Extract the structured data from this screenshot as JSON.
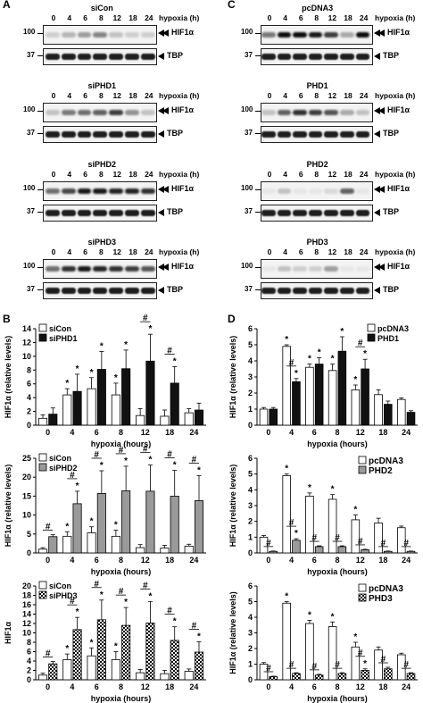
{
  "panel_letters": {
    "A": "A",
    "B": "B",
    "C": "C",
    "D": "D"
  },
  "blot_common": {
    "hypoxia_label": "hypoxia (h)",
    "lanes": [
      "0",
      "4",
      "6",
      "8",
      "12",
      "18",
      "24"
    ],
    "mw_upper": "100",
    "mw_lower": "37",
    "hif_label": "HIF1α",
    "tbp_label": "TBP"
  },
  "blots_A": [
    {
      "title": "siCon"
    },
    {
      "title": "siPHD1"
    },
    {
      "title": "siPHD2"
    },
    {
      "title": "siPHD3"
    }
  ],
  "blots_C": [
    {
      "title": "pcDNA3"
    },
    {
      "title": "PHD1"
    },
    {
      "title": "PHD2"
    },
    {
      "title": "PHD3"
    }
  ],
  "chart_data": [
    {
      "id": "B1",
      "type": "bar",
      "ylabel": "HIF1α (relative levels)",
      "xlabel": "hypoxia (hours)",
      "ylim": [
        0,
        14
      ],
      "yticks": [
        0,
        2,
        4,
        6,
        8,
        10,
        12,
        14
      ],
      "categories": [
        "0",
        "4",
        "6",
        "8",
        "12",
        "18",
        "24"
      ],
      "legend_position": "top-left",
      "series": [
        {
          "name": "siCon",
          "pattern": "white",
          "values": [
            1,
            4.4,
            5.3,
            4.4,
            1.4,
            1.3,
            1.8
          ],
          "errors": [
            0.5,
            0.9,
            1.6,
            1.7,
            1.0,
            0.9,
            0.6
          ]
        },
        {
          "name": "siPHD1",
          "pattern": "black",
          "values": [
            1.6,
            4.9,
            8.1,
            8.2,
            9.3,
            6.1,
            2.2
          ],
          "errors": [
            0.9,
            2.5,
            2.6,
            2.7,
            3.9,
            2.4,
            1.0
          ]
        }
      ],
      "annotations": [
        {
          "category": "4",
          "series": 0,
          "marks": "*"
        },
        {
          "category": "4",
          "series": 1,
          "marks": "*"
        },
        {
          "category": "6",
          "series": 0,
          "marks": "*"
        },
        {
          "category": "6",
          "series": 1,
          "marks": "*"
        },
        {
          "category": "8",
          "series": 0,
          "marks": "*"
        },
        {
          "category": "8",
          "series": 1,
          "marks": "*"
        },
        {
          "category": "12",
          "series": 1,
          "marks": "#"
        },
        {
          "category": "12",
          "series": 1,
          "marks": "*"
        },
        {
          "category": "18",
          "series": 1,
          "marks": "#"
        },
        {
          "category": "18",
          "series": 1,
          "marks": "*"
        }
      ]
    },
    {
      "id": "B2",
      "type": "bar",
      "ylabel": "HIF1α (relative levels)",
      "xlabel": "hypoxia (hours)",
      "ylim": [
        0,
        25
      ],
      "yticks": [
        0,
        5,
        10,
        15,
        20,
        25
      ],
      "categories": [
        "0",
        "4",
        "6",
        "8",
        "12",
        "18",
        "24"
      ],
      "legend_position": "top-left",
      "series": [
        {
          "name": "siCon",
          "pattern": "white",
          "values": [
            1,
            4.4,
            5.3,
            4.4,
            1.4,
            1.3,
            1.8
          ],
          "errors": [
            0.4,
            1.2,
            1.6,
            1.6,
            0.8,
            0.7,
            0.5
          ]
        },
        {
          "name": "siPHD2",
          "pattern": "gray",
          "values": [
            4.3,
            13.0,
            15.7,
            16.4,
            16.3,
            15.0,
            13.8
          ],
          "errors": [
            0.5,
            3.3,
            6.0,
            6.5,
            6.9,
            6.8,
            6.6
          ]
        }
      ],
      "annotations": [
        {
          "category": "0",
          "series": 1,
          "marks": "#"
        },
        {
          "category": "4",
          "series": 0,
          "marks": "*"
        },
        {
          "category": "4",
          "series": 1,
          "marks": "#"
        },
        {
          "category": "4",
          "series": 1,
          "marks": "*"
        },
        {
          "category": "6",
          "series": 0,
          "marks": "*"
        },
        {
          "category": "6",
          "series": 1,
          "marks": "#"
        },
        {
          "category": "6",
          "series": 1,
          "marks": "*"
        },
        {
          "category": "8",
          "series": 0,
          "marks": "*"
        },
        {
          "category": "8",
          "series": 1,
          "marks": "#"
        },
        {
          "category": "8",
          "series": 1,
          "marks": "*"
        },
        {
          "category": "12",
          "series": 1,
          "marks": "#"
        },
        {
          "category": "12",
          "series": 1,
          "marks": "*"
        },
        {
          "category": "18",
          "series": 1,
          "marks": "#"
        },
        {
          "category": "18",
          "series": 1,
          "marks": "*"
        },
        {
          "category": "24",
          "series": 1,
          "marks": "#"
        },
        {
          "category": "24",
          "series": 1,
          "marks": "*"
        }
      ]
    },
    {
      "id": "B3",
      "type": "bar",
      "ylabel": "HIF1α",
      "xlabel": "hypoxia (hours)",
      "ylim": [
        0,
        20
      ],
      "yticks": [
        0,
        2,
        4,
        6,
        8,
        10,
        12,
        14,
        16,
        18,
        20
      ],
      "categories": [
        "0",
        "4",
        "6",
        "8",
        "12",
        "18",
        "24"
      ],
      "legend_position": "top-left",
      "series": [
        {
          "name": "siCon",
          "pattern": "white",
          "values": [
            1,
            4.3,
            5.1,
            4.3,
            1.5,
            1.3,
            1.8
          ],
          "errors": [
            0.4,
            1.2,
            1.7,
            1.7,
            0.7,
            0.7,
            0.5
          ]
        },
        {
          "name": "siPHD3",
          "pattern": "check",
          "values": [
            3.4,
            10.7,
            12.8,
            11.6,
            12.1,
            8.4,
            5.9
          ],
          "errors": [
            0.5,
            2.6,
            4.2,
            3.8,
            4.6,
            2.9,
            2.2
          ]
        }
      ],
      "annotations": [
        {
          "category": "0",
          "series": 1,
          "marks": "#"
        },
        {
          "category": "4",
          "series": 0,
          "marks": "*"
        },
        {
          "category": "4",
          "series": 1,
          "marks": "#"
        },
        {
          "category": "4",
          "series": 1,
          "marks": "*"
        },
        {
          "category": "6",
          "series": 0,
          "marks": "*"
        },
        {
          "category": "6",
          "series": 1,
          "marks": "#"
        },
        {
          "category": "6",
          "series": 1,
          "marks": "*"
        },
        {
          "category": "8",
          "series": 0,
          "marks": "*"
        },
        {
          "category": "8",
          "series": 1,
          "marks": "#"
        },
        {
          "category": "8",
          "series": 1,
          "marks": "*"
        },
        {
          "category": "12",
          "series": 1,
          "marks": "#"
        },
        {
          "category": "12",
          "series": 1,
          "marks": "*"
        },
        {
          "category": "18",
          "series": 1,
          "marks": "#"
        },
        {
          "category": "18",
          "series": 1,
          "marks": "*"
        },
        {
          "category": "24",
          "series": 1,
          "marks": "#"
        },
        {
          "category": "24",
          "series": 1,
          "marks": "*"
        }
      ]
    },
    {
      "id": "D1",
      "type": "bar",
      "ylabel": "HIF1α (relative levels)",
      "xlabel": "hypoxia (hours)",
      "ylim": [
        0,
        6
      ],
      "yticks": [
        0,
        1,
        2,
        3,
        4,
        5,
        6
      ],
      "categories": [
        "0",
        "4",
        "6",
        "8",
        "12",
        "18",
        "24"
      ],
      "legend_position": "top-right",
      "series": [
        {
          "name": "pcDNA3",
          "pattern": "white",
          "values": [
            1,
            4.9,
            3.6,
            3.4,
            2.2,
            1.9,
            1.6
          ],
          "errors": [
            0.1,
            0.1,
            0.2,
            0.4,
            0.3,
            0.3,
            0.1
          ]
        },
        {
          "name": "PHD1",
          "pattern": "black",
          "values": [
            1,
            2.7,
            3.8,
            4.6,
            3.5,
            1.3,
            0.8
          ],
          "errors": [
            0.1,
            0.2,
            0.4,
            0.9,
            0.6,
            0.2,
            0.1
          ]
        }
      ],
      "annotations": [
        {
          "category": "4",
          "series": 0,
          "marks": "*"
        },
        {
          "category": "4",
          "series": 1,
          "marks": "#"
        },
        {
          "category": "4",
          "series": 1,
          "marks": "*"
        },
        {
          "category": "6",
          "series": 0,
          "marks": "*"
        },
        {
          "category": "6",
          "series": 1,
          "marks": "*"
        },
        {
          "category": "8",
          "series": 0,
          "marks": "*"
        },
        {
          "category": "8",
          "series": 1,
          "marks": "*"
        },
        {
          "category": "12",
          "series": 0,
          "marks": "*"
        },
        {
          "category": "12",
          "series": 1,
          "marks": "#"
        },
        {
          "category": "12",
          "series": 1,
          "marks": "*"
        }
      ]
    },
    {
      "id": "D2",
      "type": "bar",
      "ylabel": "HIF1α (relative levels)",
      "xlabel": "hypoxia (hours)",
      "ylim": [
        0,
        6
      ],
      "yticks": [
        0,
        1,
        2,
        3,
        4,
        5,
        6
      ],
      "categories": [
        "0",
        "4",
        "6",
        "8",
        "12",
        "18",
        "24"
      ],
      "legend_position": "top-right",
      "series": [
        {
          "name": "pcDNA3",
          "pattern": "white",
          "values": [
            1,
            4.9,
            3.6,
            3.4,
            2.1,
            1.9,
            1.6
          ],
          "errors": [
            0.1,
            0.1,
            0.2,
            0.3,
            0.3,
            0.3,
            0.1
          ]
        },
        {
          "name": "PHD2",
          "pattern": "gray",
          "values": [
            0.1,
            0.8,
            0.4,
            0.4,
            0.2,
            0.1,
            0.1
          ],
          "errors": [
            0.02,
            0.1,
            0.05,
            0.05,
            0.03,
            0.02,
            0.02
          ]
        }
      ],
      "annotations": [
        {
          "category": "0",
          "series": 1,
          "marks": "#"
        },
        {
          "category": "4",
          "series": 0,
          "marks": "*"
        },
        {
          "category": "4",
          "series": 1,
          "marks": "#"
        },
        {
          "category": "4",
          "series": 1,
          "marks": "*"
        },
        {
          "category": "6",
          "series": 0,
          "marks": "*"
        },
        {
          "category": "6",
          "series": 1,
          "marks": "#"
        },
        {
          "category": "8",
          "series": 0,
          "marks": "*"
        },
        {
          "category": "8",
          "series": 1,
          "marks": "#"
        },
        {
          "category": "12",
          "series": 0,
          "marks": "*"
        },
        {
          "category": "12",
          "series": 1,
          "marks": "#"
        },
        {
          "category": "18",
          "series": 1,
          "marks": "#"
        },
        {
          "category": "24",
          "series": 1,
          "marks": "#"
        }
      ]
    },
    {
      "id": "D3",
      "type": "bar",
      "ylabel": "HIF1α (relative levels)",
      "xlabel": "hypoxia (hours)",
      "ylim": [
        0,
        6
      ],
      "yticks": [
        0,
        1,
        2,
        3,
        4,
        5,
        6
      ],
      "categories": [
        "0",
        "4",
        "6",
        "8",
        "12",
        "18",
        "24"
      ],
      "legend_position": "top-right",
      "series": [
        {
          "name": "pcDNA3",
          "pattern": "white",
          "values": [
            1,
            4.9,
            3.6,
            3.4,
            2.1,
            1.9,
            1.6
          ],
          "errors": [
            0.1,
            0.1,
            0.2,
            0.3,
            0.3,
            0.2,
            0.1
          ]
        },
        {
          "name": "PHD3",
          "pattern": "check",
          "values": [
            0.2,
            0.4,
            0.3,
            0.4,
            0.6,
            0.7,
            0.4
          ],
          "errors": [
            0.03,
            0.05,
            0.05,
            0.05,
            0.1,
            0.1,
            0.05
          ]
        }
      ],
      "annotations": [
        {
          "category": "0",
          "series": 1,
          "marks": "#"
        },
        {
          "category": "4",
          "series": 0,
          "marks": "*"
        },
        {
          "category": "4",
          "series": 1,
          "marks": "#"
        },
        {
          "category": "6",
          "series": 0,
          "marks": "*"
        },
        {
          "category": "6",
          "series": 1,
          "marks": "#"
        },
        {
          "category": "8",
          "series": 0,
          "marks": "*"
        },
        {
          "category": "8",
          "series": 1,
          "marks": "#"
        },
        {
          "category": "12",
          "series": 0,
          "marks": "*"
        },
        {
          "category": "12",
          "series": 1,
          "marks": "#"
        },
        {
          "category": "12",
          "series": 1,
          "marks": "*"
        },
        {
          "category": "18",
          "series": 1,
          "marks": "#"
        },
        {
          "category": "24",
          "series": 1,
          "marks": "#"
        }
      ]
    }
  ]
}
